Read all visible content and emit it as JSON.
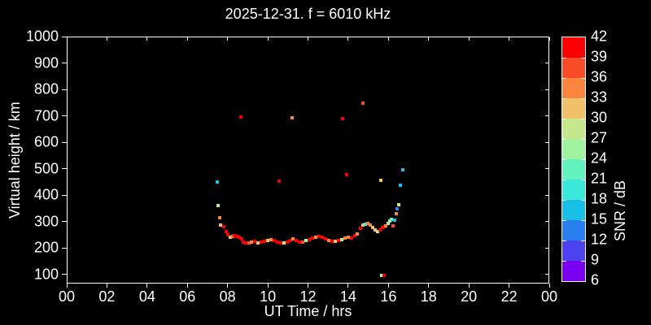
{
  "title": "2025-12-31. f = 6010 kHz",
  "axes": {
    "x": {
      "label": "UT Time / hrs",
      "range_hrs": [
        0,
        24
      ],
      "tick_values": [
        0,
        2,
        4,
        6,
        8,
        10,
        12,
        14,
        16,
        18,
        20,
        22,
        24
      ],
      "tick_labels": [
        "00",
        "02",
        "04",
        "06",
        "08",
        "10",
        "12",
        "14",
        "16",
        "18",
        "20",
        "22",
        "00"
      ]
    },
    "y": {
      "label": "Virtual height / km",
      "range_km": [
        66,
        1000
      ],
      "tick_values": [
        100,
        200,
        300,
        400,
        500,
        600,
        700,
        800,
        900,
        1000
      ],
      "tick_labels": [
        "100",
        "200",
        "300",
        "400",
        "500",
        "600",
        "700",
        "800",
        "900",
        "1000"
      ]
    }
  },
  "colorbar": {
    "label": "SNR / dB",
    "range_db": [
      6,
      42
    ],
    "tick_values": [
      6,
      9,
      12,
      15,
      18,
      21,
      24,
      27,
      30,
      33,
      36,
      39,
      42
    ],
    "segments": [
      {
        "from": 6,
        "to": 9,
        "color": "#7a00f2"
      },
      {
        "from": 9,
        "to": 12,
        "color": "#4d42f0"
      },
      {
        "from": 12,
        "to": 15,
        "color": "#2b7ef0"
      },
      {
        "from": 15,
        "to": 18,
        "color": "#18c0e8"
      },
      {
        "from": 18,
        "to": 21,
        "color": "#3ce8d8"
      },
      {
        "from": 21,
        "to": 24,
        "color": "#63f2bd"
      },
      {
        "from": 24,
        "to": 27,
        "color": "#a0f4a0"
      },
      {
        "from": 27,
        "to": 30,
        "color": "#c6e88c"
      },
      {
        "from": 30,
        "to": 33,
        "color": "#f0c06a"
      },
      {
        "from": 33,
        "to": 36,
        "color": "#f9853e"
      },
      {
        "from": 36,
        "to": 39,
        "color": "#fa4b28"
      },
      {
        "from": 39,
        "to": 42,
        "color": "#fb0000"
      }
    ]
  },
  "chart_data": {
    "type": "scatter",
    "title": "2025-12-31. f = 6010 kHz",
    "xlabel": "UT Time / hrs",
    "ylabel": "Virtual height / km",
    "zlabel": "SNR / dB",
    "xlim": [
      0,
      24
    ],
    "ylim": [
      66,
      1000
    ],
    "zlim": [
      6,
      42
    ],
    "grid": false,
    "point_format": [
      "ut_hrs",
      "virtual_height_km",
      "snr_db"
    ],
    "points": [
      [
        7.49,
        450,
        16.5
      ],
      [
        8.66,
        696,
        40.5
      ],
      [
        10.56,
        453,
        40.5
      ],
      [
        11.21,
        693,
        34.5
      ],
      [
        13.72,
        690,
        40.5
      ],
      [
        13.92,
        478,
        40.5
      ],
      [
        14.73,
        748,
        37.5
      ],
      [
        15.62,
        456,
        31.5
      ],
      [
        15.66,
        97,
        25.5
      ],
      [
        15.78,
        97,
        40.5
      ],
      [
        7.53,
        361,
        28.5
      ],
      [
        7.61,
        315,
        34.5
      ],
      [
        7.65,
        287,
        31.5
      ],
      [
        7.81,
        281,
        40.5
      ],
      [
        7.93,
        263,
        40.5
      ],
      [
        8.01,
        250,
        40.5
      ],
      [
        8.13,
        241,
        31.5
      ],
      [
        8.26,
        244,
        34.5
      ],
      [
        8.34,
        247,
        40.5
      ],
      [
        8.46,
        244,
        40.5
      ],
      [
        8.58,
        241,
        40.5
      ],
      [
        8.7,
        235,
        40.5
      ],
      [
        8.78,
        223,
        40.5
      ],
      [
        8.9,
        220,
        40.5
      ],
      [
        9.07,
        220,
        37.5
      ],
      [
        9.19,
        223,
        34.5
      ],
      [
        9.35,
        226,
        40.5
      ],
      [
        9.51,
        220,
        31.5
      ],
      [
        9.67,
        223,
        40.5
      ],
      [
        9.83,
        226,
        40.5
      ],
      [
        10.0,
        229,
        31.5
      ],
      [
        10.16,
        232,
        34.5
      ],
      [
        10.32,
        229,
        40.5
      ],
      [
        10.48,
        223,
        40.5
      ],
      [
        10.64,
        220,
        40.5
      ],
      [
        10.81,
        220,
        28.5
      ],
      [
        10.97,
        223,
        40.5
      ],
      [
        11.13,
        229,
        40.5
      ],
      [
        11.25,
        235,
        34.5
      ],
      [
        11.41,
        229,
        40.5
      ],
      [
        11.57,
        223,
        40.5
      ],
      [
        11.74,
        223,
        37.5
      ],
      [
        11.9,
        229,
        25.5
      ],
      [
        12.06,
        232,
        40.5
      ],
      [
        12.22,
        238,
        40.5
      ],
      [
        12.38,
        241,
        34.5
      ],
      [
        12.55,
        244,
        40.5
      ],
      [
        12.71,
        241,
        40.5
      ],
      [
        12.87,
        235,
        40.5
      ],
      [
        13.03,
        229,
        34.5
      ],
      [
        13.19,
        226,
        40.5
      ],
      [
        13.35,
        226,
        31.5
      ],
      [
        13.52,
        229,
        40.5
      ],
      [
        13.68,
        232,
        28.5
      ],
      [
        13.84,
        238,
        34.5
      ],
      [
        14.0,
        241,
        34.5
      ],
      [
        14.16,
        238,
        40.5
      ],
      [
        14.33,
        247,
        40.5
      ],
      [
        14.45,
        253,
        34.5
      ],
      [
        14.61,
        275,
        40.5
      ],
      [
        14.73,
        287,
        31.5
      ],
      [
        14.85,
        290,
        22.5
      ],
      [
        14.97,
        293,
        34.5
      ],
      [
        15.1,
        287,
        34.5
      ],
      [
        15.22,
        278,
        31.5
      ],
      [
        15.34,
        269,
        31.5
      ],
      [
        15.46,
        263,
        28.5
      ],
      [
        15.58,
        269,
        40.5
      ],
      [
        15.7,
        278,
        40.5
      ],
      [
        15.78,
        281,
        40.5
      ],
      [
        15.87,
        284,
        34.5
      ],
      [
        15.99,
        293,
        28.5
      ],
      [
        16.07,
        302,
        25.5
      ],
      [
        16.15,
        308,
        22.5
      ],
      [
        16.23,
        284,
        37.5
      ],
      [
        16.31,
        306,
        16.5
      ],
      [
        16.39,
        330,
        34.5
      ],
      [
        16.43,
        349,
        13.5
      ],
      [
        16.51,
        364,
        28.5
      ],
      [
        16.59,
        438,
        16.5
      ],
      [
        16.71,
        496,
        16.5
      ]
    ]
  }
}
